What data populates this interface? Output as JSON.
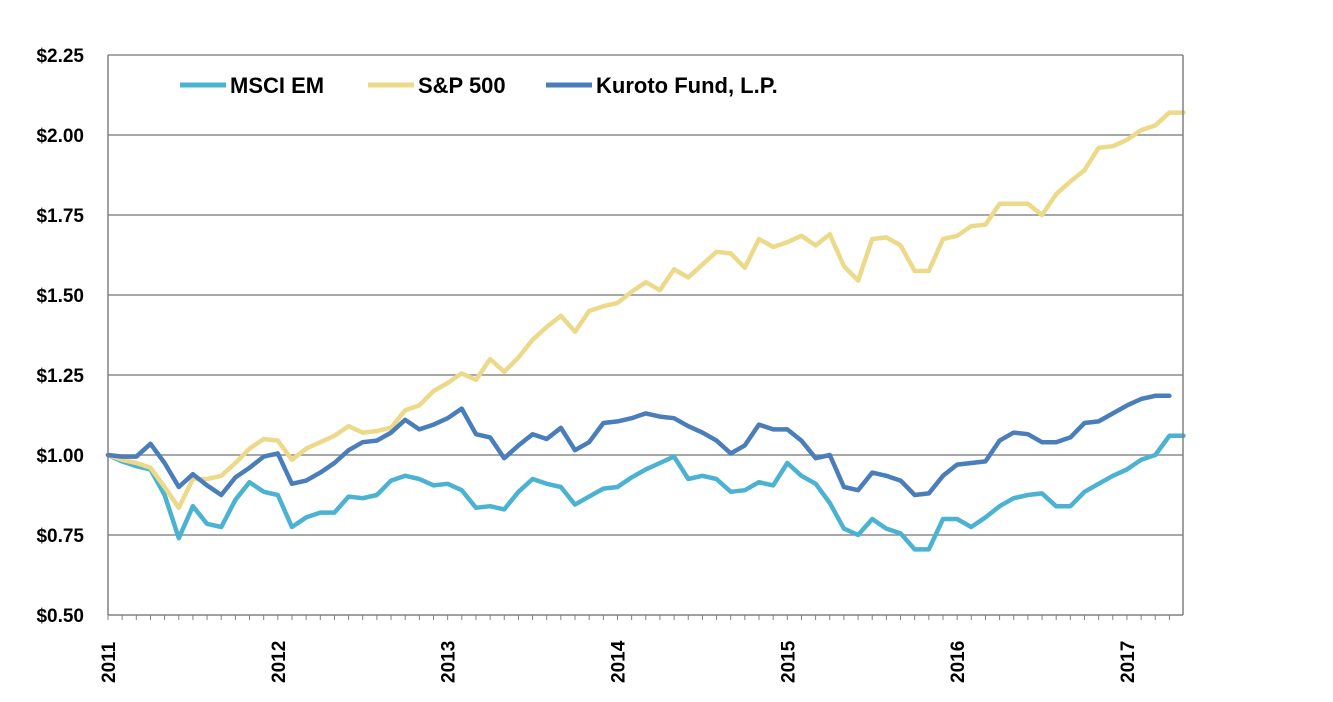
{
  "chart_data": {
    "type": "line",
    "title": "",
    "xlabel": "",
    "ylabel": "",
    "ylim": [
      0.5,
      2.25
    ],
    "yticks": [
      0.5,
      0.75,
      1.0,
      1.25,
      1.5,
      1.75,
      2.0,
      2.25
    ],
    "ytick_labels": [
      "$0.50",
      "$0.75",
      "$1.00",
      "$1.25",
      "$1.50",
      "$1.75",
      "$2.00",
      "$2.25"
    ],
    "xlim": [
      2011.0,
      2017.33
    ],
    "xticks": [
      2011,
      2012,
      2013,
      2014,
      2015,
      2016,
      2017
    ],
    "xtick_labels": [
      "2011",
      "2012",
      "2013",
      "2014",
      "2015",
      "2016",
      "2017"
    ],
    "grid": "horizontal",
    "legend_position": "top-left",
    "series": [
      {
        "name": "MSCI EM",
        "color": "#4BB3D1",
        "x": [
          2011.0,
          2011.083,
          2011.167,
          2011.25,
          2011.333,
          2011.417,
          2011.5,
          2011.583,
          2011.667,
          2011.75,
          2011.833,
          2011.917,
          2012.0,
          2012.083,
          2012.167,
          2012.25,
          2012.333,
          2012.417,
          2012.5,
          2012.583,
          2012.667,
          2012.75,
          2012.833,
          2012.917,
          2013.0,
          2013.083,
          2013.167,
          2013.25,
          2013.333,
          2013.417,
          2013.5,
          2013.583,
          2013.667,
          2013.75,
          2013.833,
          2013.917,
          2014.0,
          2014.083,
          2014.167,
          2014.25,
          2014.333,
          2014.417,
          2014.5,
          2014.583,
          2014.667,
          2014.75,
          2014.833,
          2014.917,
          2015.0,
          2015.083,
          2015.167,
          2015.25,
          2015.333,
          2015.417,
          2015.5,
          2015.583,
          2015.667,
          2015.75,
          2015.833,
          2015.917,
          2016.0,
          2016.083,
          2016.167,
          2016.25,
          2016.333,
          2016.417,
          2016.5,
          2016.583,
          2016.667,
          2016.75,
          2016.833,
          2016.917,
          2017.0,
          2017.083,
          2017.167,
          2017.25,
          2017.333
        ],
        "values": [
          1.0,
          0.98,
          0.965,
          0.955,
          0.875,
          0.74,
          0.84,
          0.785,
          0.775,
          0.86,
          0.915,
          0.885,
          0.875,
          0.775,
          0.805,
          0.82,
          0.82,
          0.87,
          0.865,
          0.875,
          0.92,
          0.935,
          0.925,
          0.905,
          0.91,
          0.89,
          0.835,
          0.84,
          0.83,
          0.885,
          0.925,
          0.91,
          0.9,
          0.845,
          0.87,
          0.895,
          0.9,
          0.93,
          0.955,
          0.975,
          0.995,
          0.925,
          0.935,
          0.925,
          0.885,
          0.89,
          0.915,
          0.905,
          0.975,
          0.935,
          0.91,
          0.85,
          0.77,
          0.75,
          0.8,
          0.77,
          0.755,
          0.705,
          0.705,
          0.8,
          0.8,
          0.775,
          0.805,
          0.84,
          0.865,
          0.875,
          0.88,
          0.84,
          0.84,
          0.885,
          0.91,
          0.935,
          0.955,
          0.985,
          1.0,
          1.06,
          1.06
        ]
      },
      {
        "name": "S&P 500",
        "color": "#EDD98A",
        "x": [
          2011.0,
          2011.083,
          2011.167,
          2011.25,
          2011.333,
          2011.417,
          2011.5,
          2011.583,
          2011.667,
          2011.75,
          2011.833,
          2011.917,
          2012.0,
          2012.083,
          2012.167,
          2012.25,
          2012.333,
          2012.417,
          2012.5,
          2012.583,
          2012.667,
          2012.75,
          2012.833,
          2012.917,
          2013.0,
          2013.083,
          2013.167,
          2013.25,
          2013.333,
          2013.417,
          2013.5,
          2013.583,
          2013.667,
          2013.75,
          2013.833,
          2013.917,
          2014.0,
          2014.083,
          2014.167,
          2014.25,
          2014.333,
          2014.417,
          2014.5,
          2014.583,
          2014.667,
          2014.75,
          2014.833,
          2014.917,
          2015.0,
          2015.083,
          2015.167,
          2015.25,
          2015.333,
          2015.417,
          2015.5,
          2015.583,
          2015.667,
          2015.75,
          2015.833,
          2015.917,
          2016.0,
          2016.083,
          2016.167,
          2016.25,
          2016.333,
          2016.417,
          2016.5,
          2016.583,
          2016.667,
          2016.75,
          2016.833,
          2016.917,
          2017.0,
          2017.083,
          2017.167,
          2017.25,
          2017.333
        ],
        "values": [
          1.0,
          0.985,
          0.975,
          0.96,
          0.9,
          0.835,
          0.925,
          0.925,
          0.935,
          0.975,
          1.02,
          1.05,
          1.045,
          0.985,
          1.02,
          1.04,
          1.06,
          1.09,
          1.07,
          1.075,
          1.085,
          1.14,
          1.155,
          1.2,
          1.225,
          1.255,
          1.235,
          1.3,
          1.26,
          1.305,
          1.36,
          1.4,
          1.435,
          1.385,
          1.45,
          1.465,
          1.475,
          1.51,
          1.54,
          1.515,
          1.58,
          1.555,
          1.595,
          1.635,
          1.63,
          1.585,
          1.675,
          1.65,
          1.665,
          1.685,
          1.655,
          1.69,
          1.59,
          1.545,
          1.675,
          1.68,
          1.655,
          1.575,
          1.575,
          1.675,
          1.685,
          1.715,
          1.72,
          1.785,
          1.785,
          1.785,
          1.75,
          1.815,
          1.855,
          1.89,
          1.96,
          1.965,
          1.985,
          2.015,
          2.03,
          2.07,
          2.07
        ]
      },
      {
        "name": "Kuroto Fund, L.P.",
        "color": "#4A7EBB",
        "x": [
          2011.0,
          2011.083,
          2011.167,
          2011.25,
          2011.333,
          2011.417,
          2011.5,
          2011.583,
          2011.667,
          2011.75,
          2011.833,
          2011.917,
          2012.0,
          2012.083,
          2012.167,
          2012.25,
          2012.333,
          2012.417,
          2012.5,
          2012.583,
          2012.667,
          2012.75,
          2012.833,
          2012.917,
          2013.0,
          2013.083,
          2013.167,
          2013.25,
          2013.333,
          2013.417,
          2013.5,
          2013.583,
          2013.667,
          2013.75,
          2013.833,
          2013.917,
          2014.0,
          2014.083,
          2014.167,
          2014.25,
          2014.333,
          2014.417,
          2014.5,
          2014.583,
          2014.667,
          2014.75,
          2014.833,
          2014.917,
          2015.0,
          2015.083,
          2015.167,
          2015.25,
          2015.333,
          2015.417,
          2015.5,
          2015.583,
          2015.667,
          2015.75,
          2015.833,
          2015.917,
          2016.0,
          2016.083,
          2016.167,
          2016.25,
          2016.333,
          2016.417,
          2016.5,
          2016.583,
          2016.667,
          2016.75,
          2016.833,
          2016.917,
          2017.0,
          2017.083,
          2017.167,
          2017.25
        ],
        "values": [
          1.0,
          0.995,
          0.995,
          1.035,
          0.975,
          0.9,
          0.94,
          0.905,
          0.875,
          0.93,
          0.96,
          0.995,
          1.005,
          0.91,
          0.92,
          0.945,
          0.975,
          1.015,
          1.04,
          1.045,
          1.07,
          1.11,
          1.08,
          1.095,
          1.115,
          1.145,
          1.065,
          1.055,
          0.99,
          1.03,
          1.065,
          1.05,
          1.085,
          1.015,
          1.04,
          1.1,
          1.105,
          1.115,
          1.13,
          1.12,
          1.115,
          1.09,
          1.07,
          1.045,
          1.005,
          1.03,
          1.095,
          1.08,
          1.08,
          1.045,
          0.99,
          1.0,
          0.9,
          0.89,
          0.945,
          0.935,
          0.92,
          0.875,
          0.88,
          0.935,
          0.97,
          0.975,
          0.98,
          1.045,
          1.07,
          1.065,
          1.04,
          1.04,
          1.055,
          1.1,
          1.105,
          1.13,
          1.155,
          1.175,
          1.185,
          1.185
        ]
      }
    ]
  }
}
